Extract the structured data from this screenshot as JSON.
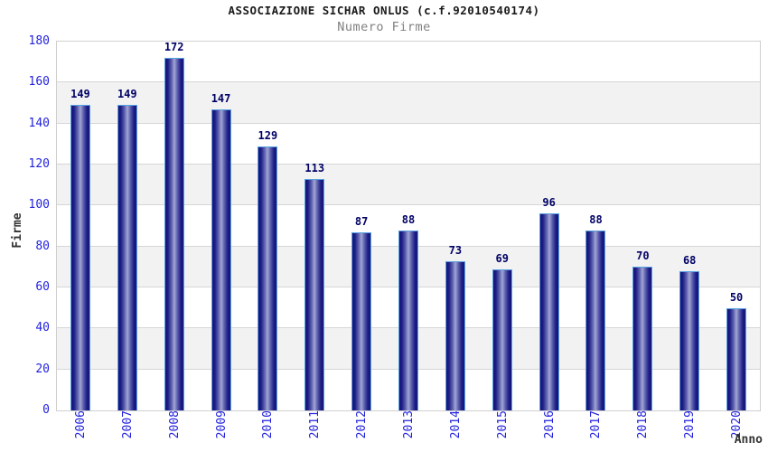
{
  "header": {
    "title": "ASSOCIAZIONE SICHAR ONLUS (c.f.92010540174)",
    "subtitle": "Numero Firme"
  },
  "chart_data": {
    "type": "bar",
    "title": "ASSOCIAZIONE SICHAR ONLUS (c.f.92010540174)",
    "subtitle": "Numero Firme",
    "categories": [
      "2006",
      "2007",
      "2008",
      "2009",
      "2010",
      "2011",
      "2012",
      "2013",
      "2014",
      "2015",
      "2016",
      "2017",
      "2018",
      "2019",
      "2020"
    ],
    "values": [
      149,
      149,
      172,
      147,
      129,
      113,
      87,
      88,
      73,
      69,
      96,
      88,
      70,
      68,
      50
    ],
    "xlabel": "Anno",
    "ylabel": "Firme",
    "ylim": [
      0,
      180
    ],
    "ytick_step": 20,
    "yticks": [
      0,
      20,
      40,
      60,
      80,
      100,
      120,
      140,
      160,
      180
    ],
    "grid": true,
    "legend": "none",
    "colors": {
      "bar_edge": "#141478",
      "bar_center": "#a2a6d4",
      "bar_outline": "#5aa2e0",
      "value_label": "#000066",
      "tick_label": "#2222dd",
      "axis_title": "#333333",
      "title": "#1a1a1a",
      "subtitle": "#808080",
      "band_alt": "#f2f2f2",
      "gridline": "#d6d6d6",
      "plot_border": "#cfcfcf",
      "background": "#ffffff"
    }
  }
}
